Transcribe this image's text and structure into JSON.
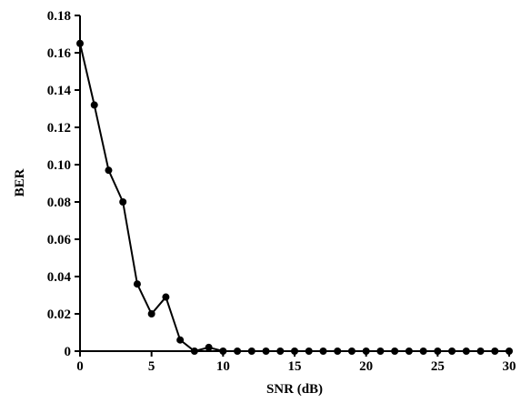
{
  "chart_data": {
    "type": "line",
    "xlabel": "SNR (dB)",
    "ylabel": "BER",
    "x": [
      0,
      1,
      2,
      3,
      4,
      5,
      6,
      7,
      8,
      9,
      10,
      11,
      12,
      13,
      14,
      15,
      16,
      17,
      18,
      19,
      20,
      21,
      22,
      23,
      24,
      25,
      26,
      27,
      28,
      29,
      30
    ],
    "series": [
      {
        "color": "#000000",
        "values": [
          0.165,
          0.132,
          0.097,
          0.08,
          0.036,
          0.02,
          0.029,
          0.006,
          0,
          0.002,
          0,
          0,
          0,
          0,
          0,
          0,
          0,
          0,
          0,
          0,
          0,
          0,
          0,
          0,
          0,
          0,
          0,
          0,
          0,
          0,
          0
        ]
      }
    ],
    "xlim": [
      0,
      30
    ],
    "xticks": [
      0,
      5,
      10,
      15,
      20,
      25,
      30
    ],
    "ylim": [
      0,
      0.18
    ],
    "yticks": [
      0,
      0.02,
      0.04,
      0.06,
      0.08,
      {
        "value": 0.1,
        "label": "0.10"
      },
      0.12,
      0.14,
      0.16,
      0.18
    ],
    "grid": false
  }
}
